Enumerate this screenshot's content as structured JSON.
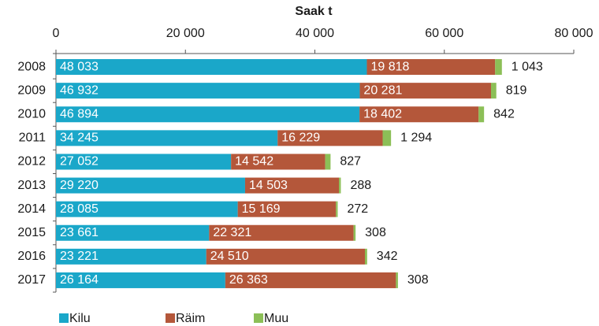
{
  "chart_data": {
    "type": "stacked-barh",
    "title": "Saak t",
    "categories": [
      "2008",
      "2009",
      "2010",
      "2011",
      "2012",
      "2013",
      "2014",
      "2015",
      "2016",
      "2017"
    ],
    "series": [
      {
        "name": "Kilu",
        "color": "#1aa7c9",
        "values": [
          48033,
          46932,
          46894,
          34245,
          27052,
          29220,
          28085,
          23661,
          23221,
          26164
        ],
        "value_labels": [
          "48 033",
          "46 932",
          "46 894",
          "34 245",
          "27 052",
          "29 220",
          "28 085",
          "23 661",
          "23 221",
          "26 164"
        ]
      },
      {
        "name": "Räim",
        "color": "#b4573a",
        "values": [
          19818,
          20281,
          18402,
          16229,
          14542,
          14503,
          15169,
          22321,
          24510,
          26363
        ],
        "value_labels": [
          "19 818",
          "20 281",
          "18 402",
          "16 229",
          "14 542",
          "14 503",
          "15 169",
          "22 321",
          "24 510",
          "26 363"
        ]
      },
      {
        "name": "Muu",
        "color": "#8cbf57",
        "values": [
          1043,
          819,
          842,
          1294,
          827,
          288,
          272,
          308,
          342,
          308
        ],
        "value_labels": [
          "1 043",
          "819",
          "842",
          "1 294",
          "827",
          "288",
          "272",
          "308",
          "342",
          "308"
        ]
      }
    ],
    "xlim": [
      0,
      80000
    ],
    "xticks": [
      0,
      {
        "value": 20000,
        "label": "20 000"
      },
      {
        "value": 40000,
        "label": "40 000"
      },
      {
        "value": 60000,
        "label": "60 000"
      },
      {
        "value": 80000,
        "label": "80 000"
      }
    ],
    "legend": "bottom-left"
  }
}
